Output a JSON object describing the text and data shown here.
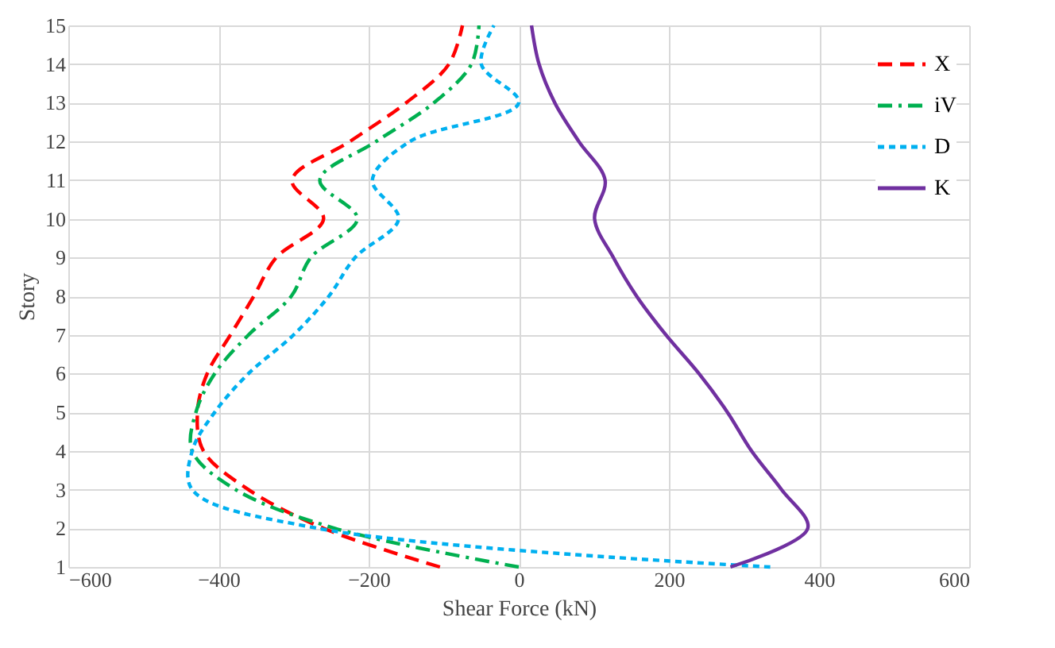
{
  "chart_data": {
    "type": "line",
    "xlabel": "Shear Force (kN)",
    "ylabel": "Story",
    "x": [
      1,
      2,
      3,
      4,
      5,
      6,
      7,
      8,
      9,
      10,
      11,
      12,
      13,
      14,
      15
    ],
    "series": [
      {
        "name": "X",
        "color": "#ff0000",
        "line_style": "dashed",
        "values": [
          -105,
          -260,
          -360,
          -420,
          -428,
          -415,
          -384,
          -353,
          -323,
          -260,
          -302,
          -225,
          -150,
          -93,
          -75
        ]
      },
      {
        "name": "iV",
        "color": "#00b050",
        "line_style": "dashdot",
        "values": [
          0,
          -245,
          -377,
          -435,
          -430,
          -405,
          -360,
          -303,
          -277,
          -215,
          -265,
          -190,
          -113,
          -63,
          -53
        ]
      },
      {
        "name": "D",
        "color": "#00b0f0",
        "line_style": "dotted",
        "values": [
          335,
          -268,
          -435,
          -435,
          -405,
          -360,
          -300,
          -253,
          -218,
          -160,
          -195,
          -145,
          0,
          -50,
          -33
        ]
      },
      {
        "name": "K",
        "color": "#7030a0",
        "line_style": "solid",
        "values": [
          282,
          385,
          350,
          310,
          278,
          240,
          196,
          157,
          126,
          101,
          115,
          80,
          48,
          27,
          17
        ]
      }
    ],
    "xlim": [
      -600,
      600
    ],
    "xticks": [
      -600,
      -400,
      -200,
      0,
      200,
      400,
      600
    ],
    "ylim": [
      1,
      15
    ],
    "yticks": [
      1,
      2,
      3,
      4,
      5,
      6,
      7,
      8,
      9,
      10,
      11,
      12,
      13,
      14,
      15
    ],
    "grid": true,
    "legend": "top right",
    "orientation": "horizontal"
  }
}
